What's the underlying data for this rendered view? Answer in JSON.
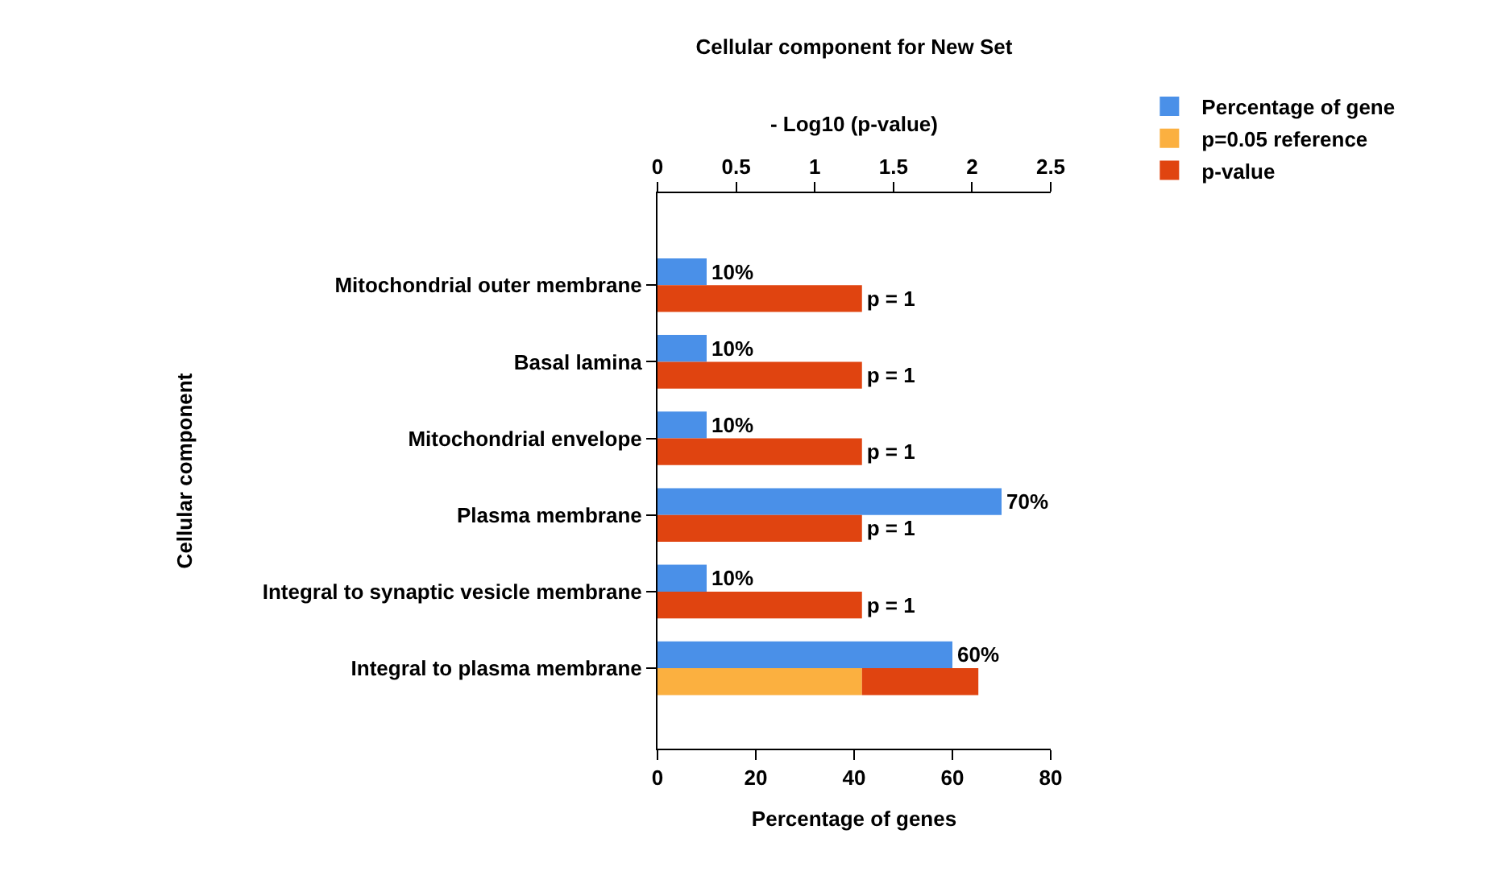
{
  "chart_data": {
    "type": "bar",
    "orientation": "horizontal",
    "title": "Cellular component for New Set",
    "xlabel": "Percentage of genes",
    "x2label": "- Log10 (p-value)",
    "ylabel": "Cellular component",
    "categories": [
      "Mitochondrial outer membrane",
      "Basal lamina",
      "Mitochondrial envelope",
      "Plasma membrane",
      "Integral to synaptic vesicle membrane",
      "Integral to plasma membrane"
    ],
    "series": [
      {
        "name": "Percentage of gene",
        "color": "#4a90e8",
        "values": [
          10,
          10,
          10,
          70,
          10,
          60
        ],
        "value_labels": [
          "10%",
          "10%",
          "10%",
          "70%",
          "10%",
          "60%"
        ]
      },
      {
        "name": "p=0.05 reference",
        "color": "#fbb040",
        "axis": "x2",
        "values": [
          null,
          null,
          null,
          null,
          null,
          1.3
        ]
      },
      {
        "name": "p-value",
        "color": "#e04410",
        "axis": "x2",
        "base": [
          0,
          0,
          0,
          0,
          0,
          1.3
        ],
        "values": [
          1.3,
          1.3,
          1.3,
          1.3,
          1.3,
          0.74
        ],
        "value_labels": [
          "p = 1",
          "p = 1",
          "p = 1",
          "p = 1",
          "p = 1",
          null
        ]
      }
    ],
    "xlim": [
      0,
      80
    ],
    "xticks": [
      0,
      20,
      40,
      60,
      80
    ],
    "x2lim": [
      0,
      2.5
    ],
    "x2ticks": [
      0,
      0.5,
      1,
      1.5,
      2,
      2.5
    ],
    "grid": false,
    "legend": "top right"
  }
}
